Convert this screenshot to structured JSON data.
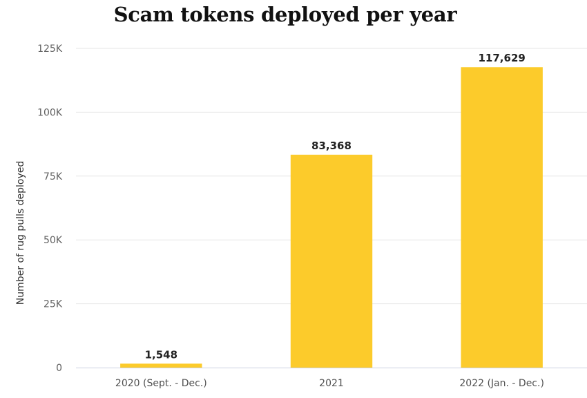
{
  "chart_data": {
    "type": "bar",
    "title": "Scam tokens deployed per year",
    "ylabel": "Number of rug pulls deployed",
    "xlabel": "",
    "categories": [
      "2020 (Sept. - Dec.)",
      "2021",
      "2022 (Jan. - Dec.)"
    ],
    "values": [
      1548,
      83368,
      117629
    ],
    "data_labels": [
      "1,548",
      "83,368",
      "117,629"
    ],
    "ylim": [
      0,
      125000
    ],
    "yticks": [
      0,
      25000,
      50000,
      75000,
      100000,
      125000
    ],
    "ytick_labels": [
      "0",
      "25K",
      "50K",
      "75K",
      "100K",
      "125K"
    ],
    "grid": true,
    "legend": "none",
    "colors": {
      "bar": "#fccb2b",
      "grid": "#e6e6e6",
      "axis": "#c9d0e0"
    }
  }
}
